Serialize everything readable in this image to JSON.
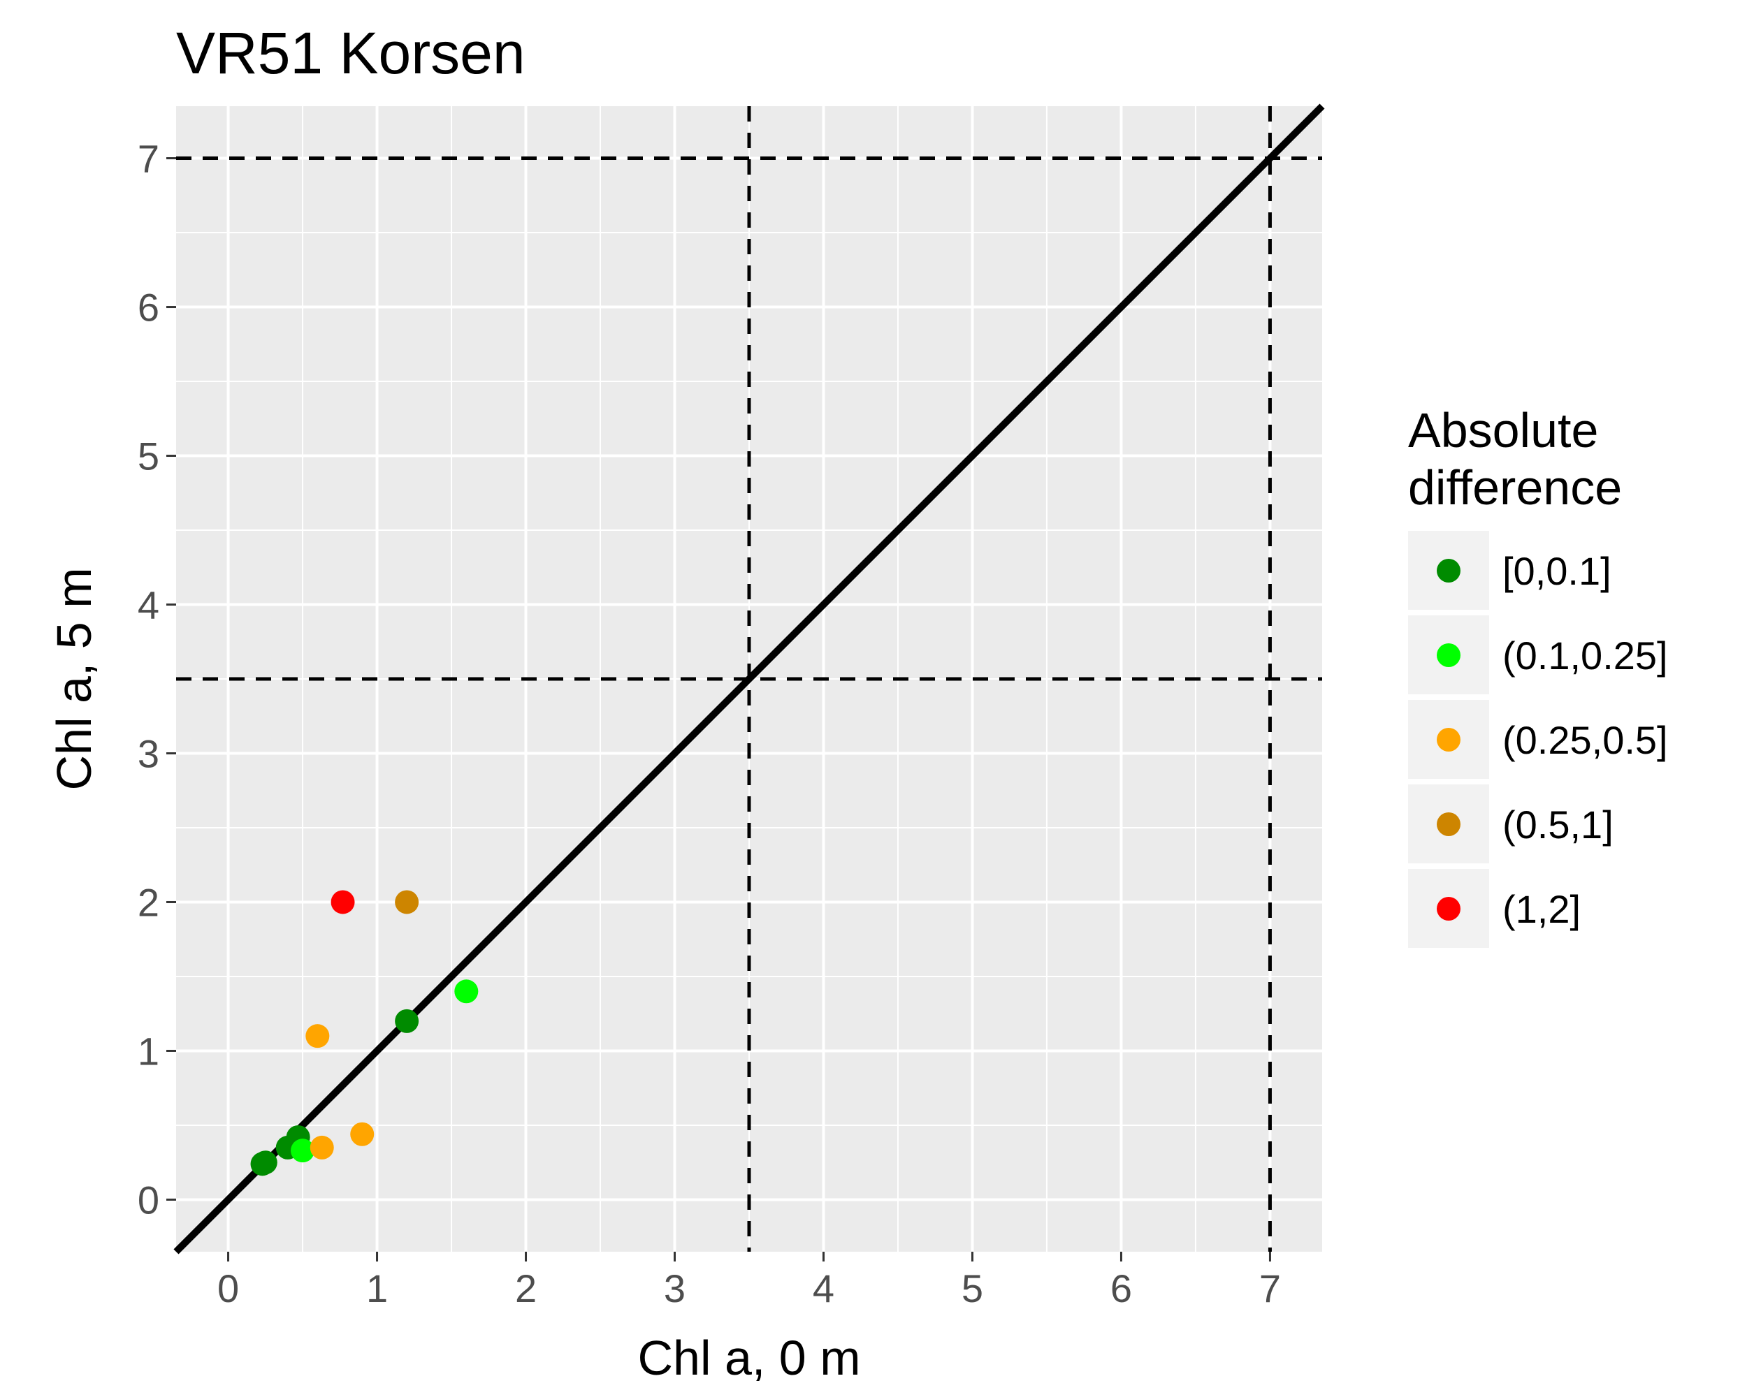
{
  "chart_data": {
    "type": "scatter",
    "title": "VR51 Korsen",
    "xlabel": "Chl a, 0 m",
    "ylabel": "Chl a, 5 m",
    "xlim": [
      -0.35,
      7.35
    ],
    "ylim": [
      -0.35,
      7.35
    ],
    "x_ticks": [
      "0",
      "1",
      "2",
      "3",
      "4",
      "5",
      "6",
      "7"
    ],
    "y_ticks": [
      "0",
      "1",
      "2",
      "3",
      "4",
      "5",
      "6",
      "7"
    ],
    "grid": true,
    "reference_lines": {
      "diagonal": "y = x",
      "vertical_dashed": [
        3.5,
        7
      ],
      "horizontal_dashed": [
        3.5,
        7
      ]
    },
    "legend": {
      "title_line1": "Absolute",
      "title_line2": "difference",
      "placement": "right",
      "entries": [
        {
          "label": "[0,0.1]",
          "color": "#008B00"
        },
        {
          "label": "(0.1,0.25]",
          "color": "#00FF00"
        },
        {
          "label": "(0.25,0.5]",
          "color": "#FFA500"
        },
        {
          "label": "(0.5,1]",
          "color": "#CD8500"
        },
        {
          "label": "(1,2]",
          "color": "#FF0000"
        }
      ]
    },
    "points": [
      {
        "x": 0.23,
        "y": 0.24,
        "group": "[0,0.1]"
      },
      {
        "x": 0.25,
        "y": 0.25,
        "group": "[0,0.1]"
      },
      {
        "x": 0.4,
        "y": 0.35,
        "group": "[0,0.1]"
      },
      {
        "x": 0.47,
        "y": 0.42,
        "group": "[0,0.1]"
      },
      {
        "x": 1.2,
        "y": 1.2,
        "group": "[0,0.1]"
      },
      {
        "x": 0.5,
        "y": 0.33,
        "group": "(0.1,0.25]"
      },
      {
        "x": 1.6,
        "y": 1.4,
        "group": "(0.1,0.25]"
      },
      {
        "x": 0.6,
        "y": 1.1,
        "group": "(0.25,0.5]"
      },
      {
        "x": 0.63,
        "y": 0.35,
        "group": "(0.25,0.5]"
      },
      {
        "x": 0.9,
        "y": 0.44,
        "group": "(0.25,0.5]"
      },
      {
        "x": 1.2,
        "y": 2.0,
        "group": "(0.5,1]"
      },
      {
        "x": 0.77,
        "y": 2.0,
        "group": "(1,2]"
      }
    ]
  }
}
